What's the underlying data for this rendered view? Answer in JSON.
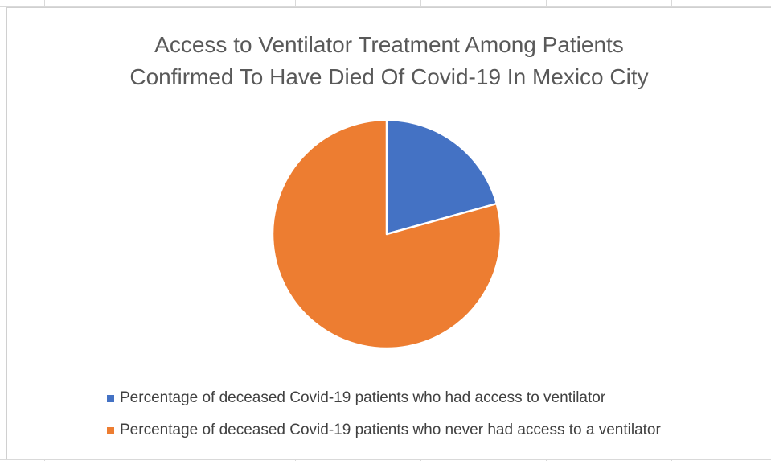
{
  "colors": {
    "series_1": "#4472c4",
    "series_2": "#ed7d31"
  },
  "chart_data": {
    "type": "pie",
    "title_lines": [
      "Access to Ventilator Treatment Among Patients",
      "Confirmed To Have Died Of Covid-19 In Mexico City"
    ],
    "categories": [
      "Percentage of deceased Covid-19 patients who had access to ventilator",
      "Percentage of deceased Covid-19 patients who never had access to a ventilator"
    ],
    "values": [
      20.7,
      79.3
    ],
    "colors": [
      "#4472c4",
      "#ed7d31"
    ],
    "legend_position": "bottom",
    "data_labels": false
  }
}
